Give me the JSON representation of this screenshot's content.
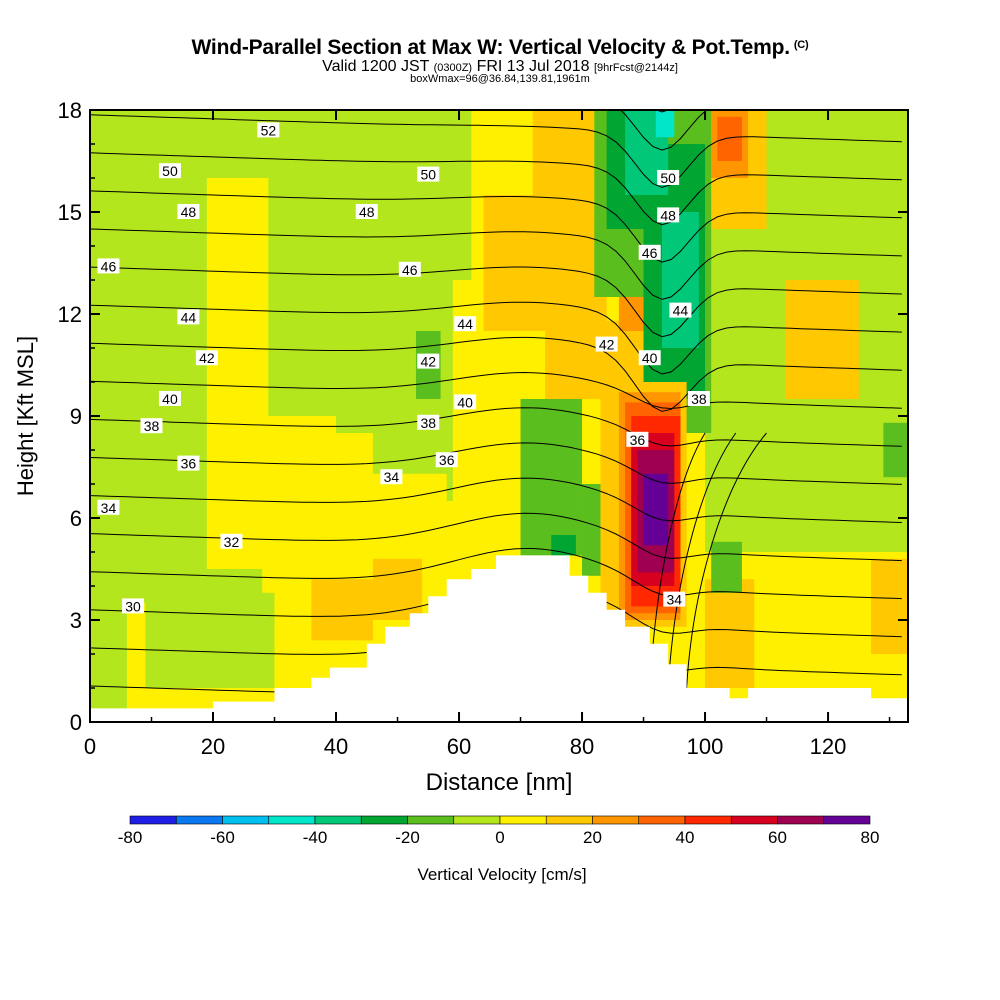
{
  "titles": {
    "main": "Wind-Parallel Section at Max W: Vertical Velocity & Pot.Temp.",
    "main_tag": "(C)",
    "valid_prefix": "Valid 1200 JST",
    "valid_utc": "(0300Z)",
    "valid_date": "FRI 13 Jul 2018",
    "forecast": "[9hrFcst@2144z]",
    "boxmax": "boxWmax=96@36.84,139.81,1961m"
  },
  "chart_data": {
    "type": "heatmap",
    "xlabel": "Distance [nm]",
    "ylabel": "Height [Kft MSL]",
    "xlim": [
      0,
      133
    ],
    "ylim": [
      0,
      18
    ],
    "x_ticks": [
      0,
      20,
      40,
      60,
      80,
      100,
      120
    ],
    "y_ticks": [
      0,
      3,
      6,
      9,
      12,
      15,
      18
    ],
    "colorbar": {
      "label": "Vertical Velocity [cm/s]",
      "levels": [
        -80,
        -70,
        -60,
        -50,
        -40,
        -30,
        -20,
        -10,
        0,
        10,
        20,
        30,
        40,
        50,
        60,
        70,
        80
      ],
      "tick_labels": [
        -80,
        -60,
        -40,
        -20,
        0,
        20,
        40,
        60,
        80
      ],
      "colors": [
        "#1e1ee6",
        "#0a78f0",
        "#00c0f0",
        "#00e6c8",
        "#00c878",
        "#00a532",
        "#5abe1e",
        "#b4e61e",
        "#fff000",
        "#ffc800",
        "#ff9600",
        "#ff6400",
        "#ff2800",
        "#d7001e",
        "#a00050",
        "#640096"
      ]
    },
    "terrain_kft": [
      [
        0,
        0.4
      ],
      [
        20,
        0.4
      ],
      [
        20,
        0.6
      ],
      [
        30,
        0.6
      ],
      [
        30,
        1.0
      ],
      [
        36,
        1.0
      ],
      [
        36,
        1.3
      ],
      [
        39,
        1.3
      ],
      [
        39,
        1.6
      ],
      [
        45,
        1.6
      ],
      [
        45,
        2.3
      ],
      [
        48,
        2.3
      ],
      [
        48,
        2.8
      ],
      [
        52,
        2.8
      ],
      [
        52,
        3.2
      ],
      [
        55,
        3.2
      ],
      [
        55,
        3.7
      ],
      [
        58,
        3.7
      ],
      [
        58,
        4.2
      ],
      [
        62,
        4.2
      ],
      [
        62,
        4.5
      ],
      [
        66,
        4.5
      ],
      [
        66,
        4.9
      ],
      [
        78,
        4.9
      ],
      [
        78,
        4.3
      ],
      [
        81,
        4.3
      ],
      [
        81,
        3.8
      ],
      [
        84,
        3.8
      ],
      [
        84,
        3.3
      ],
      [
        87,
        3.3
      ],
      [
        87,
        2.8
      ],
      [
        91,
        2.8
      ],
      [
        91,
        2.3
      ],
      [
        94,
        2.3
      ],
      [
        94,
        1.7
      ],
      [
        97,
        1.7
      ],
      [
        97,
        1.0
      ],
      [
        104,
        1.0
      ],
      [
        104,
        0.7
      ],
      [
        107,
        0.7
      ],
      [
        107,
        1.0
      ],
      [
        127,
        1.0
      ],
      [
        127,
        0.7
      ],
      [
        133,
        0.7
      ]
    ],
    "cells": [
      {
        "x": [
          0,
          133
        ],
        "y": [
          0,
          18
        ],
        "v": 5
      },
      {
        "x": [
          0,
          28
        ],
        "y": [
          3.5,
          18
        ],
        "v": -5
      },
      {
        "x": [
          27,
          40
        ],
        "y": [
          9,
          18
        ],
        "v": -5
      },
      {
        "x": [
          40,
          62
        ],
        "y": [
          6.5,
          18
        ],
        "v": -5
      },
      {
        "x": [
          100,
          133
        ],
        "y": [
          5,
          18
        ],
        "v": -5
      },
      {
        "x": [
          0,
          6
        ],
        "y": [
          0.4,
          6
        ],
        "v": -5
      },
      {
        "x": [
          9,
          30
        ],
        "y": [
          1.0,
          3.8
        ],
        "v": -5
      },
      {
        "x": [
          19,
          29
        ],
        "y": [
          4.5,
          16
        ],
        "v": 5
      },
      {
        "x": [
          32,
          46
        ],
        "y": [
          2,
          8.5
        ],
        "v": 5
      },
      {
        "x": [
          45,
          58
        ],
        "y": [
          4.2,
          7.3
        ],
        "v": 5
      },
      {
        "x": [
          59,
          70
        ],
        "y": [
          5,
          13
        ],
        "v": 5
      },
      {
        "x": [
          36,
          46
        ],
        "y": [
          2.4,
          4.2
        ],
        "v": 15
      },
      {
        "x": [
          46,
          54
        ],
        "y": [
          3.0,
          4.8
        ],
        "v": 15
      },
      {
        "x": [
          64,
          76
        ],
        "y": [
          11.5,
          15.5
        ],
        "v": 15
      },
      {
        "x": [
          72,
          82
        ],
        "y": [
          15,
          18
        ],
        "v": 15
      },
      {
        "x": [
          74,
          84
        ],
        "y": [
          9.5,
          15
        ],
        "v": 15
      },
      {
        "x": [
          82,
          88
        ],
        "y": [
          12.5,
          18
        ],
        "v": 15
      },
      {
        "x": [
          84,
          92
        ],
        "y": [
          9.5,
          11.8
        ],
        "v": 15
      },
      {
        "x": [
          100,
          110
        ],
        "y": [
          14.5,
          18
        ],
        "v": 15
      },
      {
        "x": [
          113,
          125
        ],
        "y": [
          9.5,
          13
        ],
        "v": 15
      },
      {
        "x": [
          127,
          133
        ],
        "y": [
          2,
          4.8
        ],
        "v": 15
      },
      {
        "x": [
          100,
          108
        ],
        "y": [
          1.0,
          4.2
        ],
        "v": 15
      },
      {
        "x": [
          86,
          93
        ],
        "y": [
          11.5,
          12.8
        ],
        "v": 25
      },
      {
        "x": [
          101,
          107
        ],
        "y": [
          16,
          18
        ],
        "v": 25
      },
      {
        "x": [
          102,
          106
        ],
        "y": [
          16.5,
          17.8
        ],
        "v": 35
      },
      {
        "x": [
          53,
          57
        ],
        "y": [
          9.5,
          11.5
        ],
        "v": -15
      },
      {
        "x": [
          70,
          80
        ],
        "y": [
          4.9,
          9.5
        ],
        "v": -15
      },
      {
        "x": [
          80,
          85
        ],
        "y": [
          4.3,
          7
        ],
        "v": -15
      },
      {
        "x": [
          75,
          79
        ],
        "y": [
          4.9,
          5.5
        ],
        "v": -25
      },
      {
        "x": [
          101,
          106
        ],
        "y": [
          3.8,
          5.3
        ],
        "v": -15
      },
      {
        "x": [
          129,
          133
        ],
        "y": [
          7.2,
          8.8
        ],
        "v": -15
      },
      {
        "x": [
          82,
          91
        ],
        "y": [
          12.5,
          18
        ],
        "v": -15
      },
      {
        "x": [
          91,
          101
        ],
        "y": [
          8.5,
          18
        ],
        "v": -15
      },
      {
        "x": [
          84,
          90
        ],
        "y": [
          14.5,
          18
        ],
        "v": -25
      },
      {
        "x": [
          90,
          100
        ],
        "y": [
          9.5,
          17
        ],
        "v": -25
      },
      {
        "x": [
          87,
          94
        ],
        "y": [
          15.5,
          18
        ],
        "v": -35
      },
      {
        "x": [
          93,
          99
        ],
        "y": [
          11,
          15
        ],
        "v": -35
      },
      {
        "x": [
          92,
          95
        ],
        "y": [
          17.2,
          18
        ],
        "v": -45
      },
      {
        "x": [
          83,
          97
        ],
        "y": [
          2.8,
          10
        ],
        "v": 15
      },
      {
        "x": [
          86,
          96
        ],
        "y": [
          3.0,
          9.7
        ],
        "v": 25
      },
      {
        "x": [
          87,
          96
        ],
        "y": [
          3.2,
          9.4
        ],
        "v": 35
      },
      {
        "x": [
          88,
          96
        ],
        "y": [
          3.4,
          9
        ],
        "v": 45
      },
      {
        "x": [
          88,
          95
        ],
        "y": [
          4,
          8.5
        ],
        "v": 55
      },
      {
        "x": [
          89,
          95
        ],
        "y": [
          4.4,
          8
        ],
        "v": 65
      },
      {
        "x": [
          90,
          94
        ],
        "y": [
          5.2,
          7.3
        ],
        "v": 75
      }
    ],
    "contour_labels": [
      {
        "text": "52",
        "x": 29,
        "y": 17.4
      },
      {
        "text": "50",
        "x": 13,
        "y": 16.2
      },
      {
        "text": "50",
        "x": 55,
        "y": 16.1
      },
      {
        "text": "50",
        "x": 94,
        "y": 16.0
      },
      {
        "text": "48",
        "x": 16,
        "y": 15.0
      },
      {
        "text": "48",
        "x": 45,
        "y": 15.0
      },
      {
        "text": "48",
        "x": 94,
        "y": 14.9
      },
      {
        "text": "46",
        "x": 3,
        "y": 13.4
      },
      {
        "text": "46",
        "x": 52,
        "y": 13.3
      },
      {
        "text": "46",
        "x": 91,
        "y": 13.8
      },
      {
        "text": "44",
        "x": 16,
        "y": 11.9
      },
      {
        "text": "44",
        "x": 61,
        "y": 11.7
      },
      {
        "text": "44",
        "x": 96,
        "y": 12.1
      },
      {
        "text": "42",
        "x": 19,
        "y": 10.7
      },
      {
        "text": "42",
        "x": 55,
        "y": 10.6
      },
      {
        "text": "42",
        "x": 84,
        "y": 11.1
      },
      {
        "text": "40",
        "x": 13,
        "y": 9.5
      },
      {
        "text": "40",
        "x": 61,
        "y": 9.4
      },
      {
        "text": "40",
        "x": 91,
        "y": 10.7
      },
      {
        "text": "38",
        "x": 10,
        "y": 8.7
      },
      {
        "text": "38",
        "x": 55,
        "y": 8.8
      },
      {
        "text": "38",
        "x": 99,
        "y": 9.5
      },
      {
        "text": "36",
        "x": 16,
        "y": 7.6
      },
      {
        "text": "36",
        "x": 58,
        "y": 7.7
      },
      {
        "text": "36",
        "x": 89,
        "y": 8.3
      },
      {
        "text": "34",
        "x": 3,
        "y": 6.3
      },
      {
        "text": "34",
        "x": 49,
        "y": 7.2
      },
      {
        "text": "34",
        "x": 95,
        "y": 3.6
      },
      {
        "text": "32",
        "x": 23,
        "y": 5.3
      },
      {
        "text": "30",
        "x": 7,
        "y": 3.4
      }
    ]
  }
}
